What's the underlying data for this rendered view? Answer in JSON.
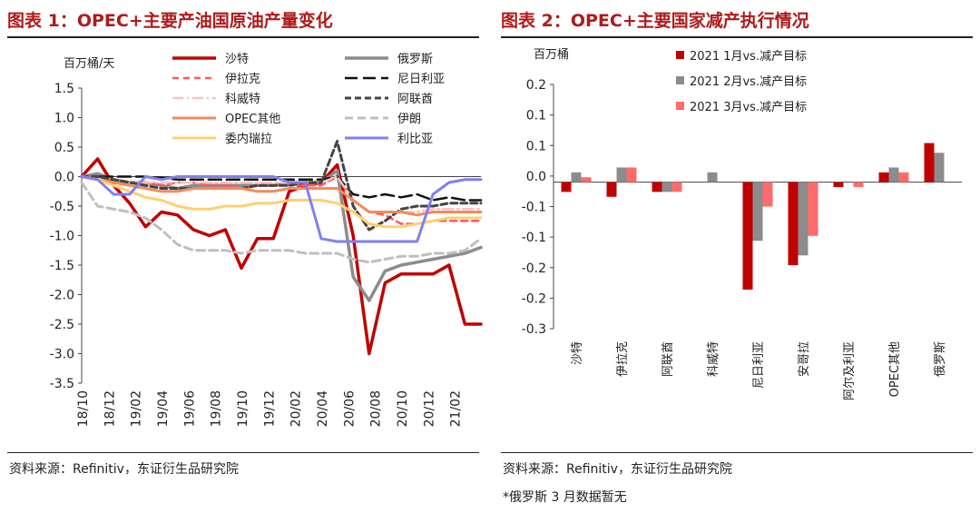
{
  "left": {
    "title": "图表 1：OPEC+主要产油国原油产量变化",
    "source": "资料来源：Refinitiv，东证衍生品研究院"
  },
  "right": {
    "title": "图表 2：OPEC+主要国家减产执行情况",
    "source": "资料来源：Refinitiv，东证衍生品研究院",
    "note": "*俄罗斯 3 月数据暂无"
  },
  "chart_data": [
    {
      "type": "line",
      "ylabel": "百万桶/天",
      "ylim": [
        -3.5,
        1.5
      ],
      "yticks": [
        "1.5",
        "1.0",
        "0.5",
        "0.0",
        "-0.5",
        "-1.0",
        "-1.5",
        "-2.0",
        "-2.5",
        "-3.0",
        "-3.5"
      ],
      "xticks": [
        "18/10",
        "18/12",
        "19/02",
        "19/04",
        "19/06",
        "19/08",
        "19/10",
        "19/12",
        "20/02",
        "20/04",
        "20/06",
        "20/08",
        "20/10",
        "20/12",
        "21/02"
      ],
      "grid": false,
      "legend": "top",
      "series": [
        {
          "name": "沙特",
          "color": "#c00000",
          "width": 3.5,
          "dash": "",
          "values": [
            0.0,
            0.3,
            -0.15,
            -0.45,
            -0.85,
            -0.6,
            -0.65,
            -0.9,
            -1.0,
            -0.9,
            -1.55,
            -1.05,
            -1.05,
            -0.25,
            -0.15,
            -0.1,
            0.2,
            -1.0,
            -3.0,
            -1.8,
            -1.65,
            -1.65,
            -1.65,
            -1.5,
            -2.5,
            -2.5
          ]
        },
        {
          "name": "俄罗斯",
          "color": "#8c8c8c",
          "width": 3.5,
          "dash": "",
          "values": [
            0.0,
            0.05,
            -0.05,
            -0.1,
            -0.1,
            -0.15,
            -0.2,
            -0.15,
            -0.15,
            -0.15,
            -0.15,
            -0.15,
            -0.15,
            -0.1,
            -0.1,
            -0.1,
            0.1,
            -1.7,
            -2.1,
            -1.6,
            -1.5,
            -1.45,
            -1.4,
            -1.35,
            -1.3,
            -1.2
          ]
        },
        {
          "name": "伊拉克",
          "color": "#ff5a5a",
          "width": 2.5,
          "dash": "7,5",
          "values": [
            0.0,
            0.0,
            -0.05,
            -0.1,
            -0.1,
            -0.15,
            -0.1,
            -0.1,
            -0.15,
            -0.15,
            -0.2,
            -0.15,
            -0.15,
            -0.15,
            -0.15,
            -0.15,
            0.0,
            -0.4,
            -0.6,
            -0.65,
            -0.8,
            -0.8,
            -0.75,
            -0.75,
            -0.75,
            -0.75
          ]
        },
        {
          "name": "尼日利亚",
          "color": "#111111",
          "width": 2.5,
          "dash": "14,6",
          "values": [
            0.0,
            0.0,
            0.0,
            0.0,
            0.0,
            -0.02,
            -0.05,
            -0.05,
            -0.05,
            -0.05,
            -0.05,
            -0.05,
            -0.05,
            -0.05,
            -0.05,
            -0.05,
            0.0,
            -0.3,
            -0.35,
            -0.3,
            -0.35,
            -0.3,
            -0.4,
            -0.35,
            -0.4,
            -0.4
          ]
        },
        {
          "name": "科威特",
          "color": "#f7c4c4",
          "width": 2.5,
          "dash": "12,4,2,4",
          "values": [
            0.0,
            0.0,
            -0.05,
            -0.1,
            -0.1,
            -0.1,
            -0.1,
            -0.1,
            -0.1,
            -0.1,
            -0.1,
            -0.1,
            -0.1,
            -0.1,
            -0.1,
            -0.1,
            0.0,
            -0.4,
            -0.6,
            -0.6,
            -0.6,
            -0.6,
            -0.55,
            -0.55,
            -0.55,
            -0.55
          ]
        },
        {
          "name": "阿联酋",
          "color": "#444444",
          "width": 3,
          "dash": "7,4",
          "values": [
            0.0,
            0.0,
            -0.05,
            -0.1,
            -0.15,
            -0.2,
            -0.2,
            -0.2,
            -0.2,
            -0.2,
            -0.2,
            -0.15,
            -0.15,
            -0.15,
            -0.1,
            -0.1,
            0.6,
            -0.5,
            -0.9,
            -0.75,
            -0.55,
            -0.5,
            -0.5,
            -0.45,
            -0.45,
            -0.45
          ]
        },
        {
          "name": "OPEC其他",
          "color": "#f48a5c",
          "width": 3,
          "dash": "",
          "values": [
            0.0,
            -0.05,
            -0.1,
            -0.15,
            -0.2,
            -0.25,
            -0.25,
            -0.2,
            -0.2,
            -0.2,
            -0.2,
            -0.25,
            -0.25,
            -0.2,
            -0.2,
            -0.2,
            -0.2,
            -0.4,
            -0.6,
            -0.6,
            -0.6,
            -0.65,
            -0.6,
            -0.6,
            -0.6,
            -0.6
          ]
        },
        {
          "name": "伊朗",
          "color": "#bfbfbf",
          "width": 3,
          "dash": "9,5",
          "values": [
            -0.1,
            -0.5,
            -0.55,
            -0.6,
            -0.7,
            -0.9,
            -1.15,
            -1.25,
            -1.25,
            -1.25,
            -1.3,
            -1.25,
            -1.25,
            -1.25,
            -1.3,
            -1.3,
            -1.3,
            -1.4,
            -1.45,
            -1.4,
            -1.35,
            -1.35,
            -1.3,
            -1.3,
            -1.25,
            -1.05
          ]
        },
        {
          "name": "委内瑞拉",
          "color": "#ffd070",
          "width": 3,
          "dash": "",
          "values": [
            0.0,
            -0.05,
            -0.15,
            -0.25,
            -0.35,
            -0.4,
            -0.5,
            -0.55,
            -0.55,
            -0.5,
            -0.5,
            -0.45,
            -0.45,
            -0.4,
            -0.4,
            -0.4,
            -0.45,
            -0.6,
            -0.8,
            -0.85,
            -0.85,
            -0.8,
            -0.75,
            -0.7,
            -0.7,
            -0.7
          ]
        },
        {
          "name": "利比亚",
          "color": "#8080f0",
          "width": 3,
          "dash": "",
          "values": [
            0.0,
            -0.05,
            -0.3,
            -0.3,
            0.0,
            -0.05,
            0.0,
            0.0,
            0.0,
            0.0,
            0.0,
            0.0,
            0.0,
            -0.1,
            -0.1,
            -1.05,
            -1.1,
            -1.1,
            -1.1,
            -1.1,
            -1.1,
            -1.1,
            -0.3,
            -0.1,
            -0.05,
            -0.05
          ]
        }
      ]
    },
    {
      "type": "bar",
      "ylabel": "百万桶",
      "ylim": [
        -0.3,
        0.2
      ],
      "yticks": [
        "0.2",
        "0.1",
        "0.1",
        "0.0",
        "-0.1",
        "-0.1",
        "-0.2",
        "-0.2",
        "-0.3"
      ],
      "categories": [
        "沙特",
        "伊拉克",
        "阿联酋",
        "科威特",
        "尼日利亚",
        "安哥拉",
        "阿尔及利亚",
        "OPEC其他",
        "俄罗斯"
      ],
      "grid": false,
      "legend": "top-left",
      "series": [
        {
          "name": "2021 1月vs.减产目标",
          "color": "#c00000",
          "values": [
            -0.02,
            -0.03,
            -0.02,
            0.0,
            -0.22,
            -0.17,
            -0.01,
            0.02,
            0.08
          ]
        },
        {
          "name": "2021 2月vs.减产目标",
          "color": "#8c8c8c",
          "values": [
            0.02,
            0.03,
            -0.02,
            0.02,
            -0.12,
            -0.15,
            0.0,
            0.03,
            0.06
          ]
        },
        {
          "name": "2021 3月vs.减产目标",
          "color": "#ff6b6b",
          "values": [
            0.01,
            0.03,
            -0.02,
            0.0,
            -0.05,
            -0.11,
            -0.01,
            0.02,
            0.0
          ]
        }
      ]
    }
  ]
}
